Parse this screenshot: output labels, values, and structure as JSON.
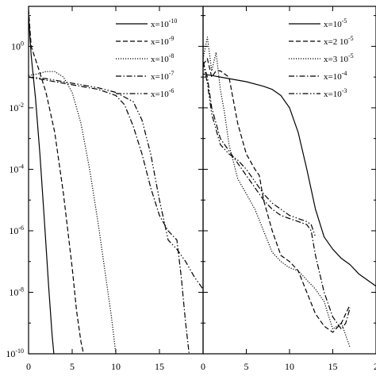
{
  "chart_data": [
    {
      "type": "line",
      "title": "",
      "xlabel": "",
      "ylabel": "",
      "xlim": [
        0,
        20
      ],
      "ylim_log10": [
        -10,
        1.3
      ],
      "y_scale": "log",
      "xticks": [
        "0",
        "5",
        "10",
        "15"
      ],
      "yticks": [
        {
          "base": "10",
          "exp": "0"
        },
        {
          "base": "10",
          "exp": "-2"
        },
        {
          "base": "10",
          "exp": "-4"
        },
        {
          "base": "10",
          "exp": "-6"
        },
        {
          "base": "10",
          "exp": "-8"
        },
        {
          "base": "10",
          "exp": "-10"
        }
      ],
      "legend_position": "top-right",
      "series": [
        {
          "name": {
            "pre": "x=10",
            "sup": "-10"
          },
          "style": "solid",
          "x": [
            0,
            0.3,
            0.8,
            1.3,
            1.8,
            2.3,
            2.7,
            2.9
          ],
          "y_log10": [
            1.0,
            -0.3,
            -1.7,
            -3.5,
            -5.6,
            -7.8,
            -9.4,
            -10
          ]
        },
        {
          "name": {
            "pre": "x=10",
            "sup": "-9"
          },
          "style": "dashed",
          "x": [
            0,
            0.3,
            1,
            2,
            3,
            4,
            5,
            5.5,
            6,
            6.3
          ],
          "y_log10": [
            1.2,
            0.0,
            -0.6,
            -1.5,
            -2.8,
            -4.8,
            -7.2,
            -8.6,
            -9.6,
            -10
          ]
        },
        {
          "name": {
            "pre": "x=10",
            "sup": "-8"
          },
          "style": "dotted",
          "x": [
            0,
            1,
            2,
            3,
            4,
            5,
            6,
            7,
            8,
            9,
            9.5,
            10
          ],
          "y_log10": [
            -0.95,
            -0.9,
            -0.82,
            -0.82,
            -1.0,
            -1.5,
            -2.5,
            -4.0,
            -5.8,
            -7.8,
            -8.8,
            -10
          ]
        },
        {
          "name": {
            "pre": "x=10",
            "sup": "-7"
          },
          "style": "dashdot",
          "x": [
            0,
            2,
            4,
            6,
            8,
            10,
            11,
            12,
            13,
            14,
            15,
            16,
            17,
            17.5,
            18,
            18.4
          ],
          "y_log10": [
            -1.0,
            -1.1,
            -1.2,
            -1.3,
            -1.4,
            -1.6,
            -1.9,
            -2.6,
            -3.5,
            -4.6,
            -5.5,
            -6.0,
            -6.3,
            -7.5,
            -9.0,
            -10
          ]
        },
        {
          "name": {
            "pre": "x=10",
            "sup": "-6"
          },
          "style": "dashdotdot",
          "x": [
            0,
            2,
            4,
            6,
            8,
            10,
            12,
            13,
            14,
            15,
            16,
            17,
            18,
            19,
            20
          ],
          "y_log10": [
            -1.0,
            -1.05,
            -1.15,
            -1.25,
            -1.35,
            -1.5,
            -1.8,
            -2.4,
            -3.5,
            -5.0,
            -6.3,
            -6.6,
            -7.0,
            -7.5,
            -7.9
          ]
        }
      ]
    },
    {
      "type": "line",
      "title": "",
      "xlabel": "",
      "ylabel": "",
      "xlim": [
        0,
        20
      ],
      "ylim_log10": [
        -10,
        1.3
      ],
      "y_scale": "log",
      "xticks": [
        "0",
        "5",
        "10",
        "15",
        "2"
      ],
      "legend_position": "top-right",
      "series": [
        {
          "name": {
            "pre": "x=10",
            "sup": "-5"
          },
          "style": "solid",
          "x": [
            0,
            1,
            3,
            5,
            7,
            8,
            9,
            10,
            11,
            12,
            13,
            14,
            15,
            16,
            17,
            18,
            19,
            20
          ],
          "y_log10": [
            -0.9,
            -0.95,
            -1.05,
            -1.15,
            -1.3,
            -1.4,
            -1.6,
            -2.0,
            -2.8,
            -4.0,
            -5.3,
            -6.2,
            -6.6,
            -6.9,
            -7.1,
            -7.4,
            -7.6,
            -7.8
          ]
        },
        {
          "name": {
            "pre": "x=2 10",
            "sup": "-5"
          },
          "style": "dashed",
          "x": [
            0,
            0.5,
            1,
            1.5,
            2,
            3,
            4,
            5,
            6,
            6.5,
            7,
            8,
            9,
            10,
            11,
            12,
            13,
            14,
            15,
            16,
            17
          ],
          "y_log10": [
            -0.6,
            -0.4,
            -1.0,
            -0.8,
            -0.8,
            -1.0,
            -2.5,
            -3.5,
            -4.0,
            -4.2,
            -5.0,
            -6.0,
            -6.8,
            -7.0,
            -7.3,
            -8.0,
            -8.7,
            -9.1,
            -9.3,
            -9.0,
            -8.4
          ]
        },
        {
          "name": {
            "pre": "x=3 10",
            "sup": "-5"
          },
          "style": "dotted",
          "x": [
            0,
            0.5,
            1,
            1.5,
            2,
            2.5,
            3,
            4,
            5,
            6,
            7,
            8,
            9,
            10,
            11,
            12,
            13,
            14,
            15,
            16,
            17
          ],
          "y_log10": [
            -0.4,
            0.3,
            -0.8,
            -0.2,
            -1.4,
            -2.2,
            -3.2,
            -4.3,
            -4.8,
            -5.3,
            -6.0,
            -6.7,
            -7.0,
            -7.2,
            -7.3,
            -7.6,
            -7.9,
            -8.3,
            -9.2,
            -9.0,
            -9.8
          ]
        },
        {
          "name": {
            "pre": "x=10",
            "sup": "-4"
          },
          "style": "dashdot",
          "x": [
            0,
            0.5,
            1,
            2,
            3,
            4,
            5,
            6,
            7,
            8,
            9,
            10,
            11,
            12,
            12.5,
            13,
            14,
            15,
            16,
            16.5,
            17
          ],
          "y_log10": [
            -0.5,
            -1.0,
            -2.0,
            -3.0,
            -3.4,
            -3.8,
            -4.2,
            -4.6,
            -5.0,
            -5.3,
            -5.5,
            -5.6,
            -5.7,
            -5.8,
            -6.0,
            -6.8,
            -8.0,
            -8.8,
            -9.2,
            -9.0,
            -8.5
          ]
        },
        {
          "name": {
            "pre": "x=10",
            "sup": "-3"
          },
          "style": "dashdotdot",
          "x": [
            0,
            0.5,
            1,
            2,
            3,
            4,
            5,
            6,
            7,
            8,
            9,
            10,
            11,
            12,
            12.5,
            13
          ],
          "y_log10": [
            -0.5,
            -1.2,
            -2.2,
            -3.2,
            -3.5,
            -3.7,
            -4.0,
            -4.4,
            -4.8,
            -5.1,
            -5.3,
            -5.5,
            -5.6,
            -5.7,
            -5.8,
            -6.2
          ]
        }
      ]
    }
  ]
}
